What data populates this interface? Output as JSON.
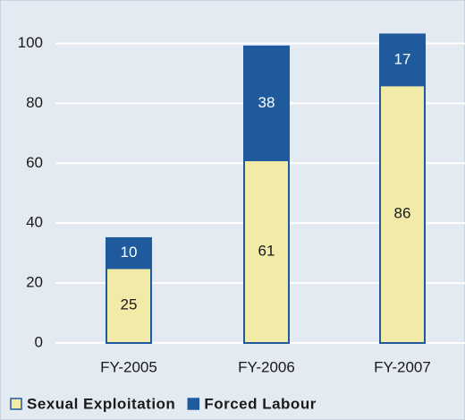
{
  "chart_data": {
    "type": "stacked_bar",
    "categories": [
      "FY-2005",
      "FY-2006",
      "FY-2007"
    ],
    "series": [
      {
        "name": "Sexual Exploitation",
        "color": "#f2eba8",
        "values": [
          25,
          61,
          86
        ]
      },
      {
        "name": "Forced Labour",
        "color": "#1f5b9c",
        "values": [
          10,
          38,
          17
        ]
      }
    ],
    "ylim": [
      0,
      110
    ],
    "yticks": [
      0,
      20,
      40,
      60,
      80,
      100
    ],
    "grid": true
  }
}
